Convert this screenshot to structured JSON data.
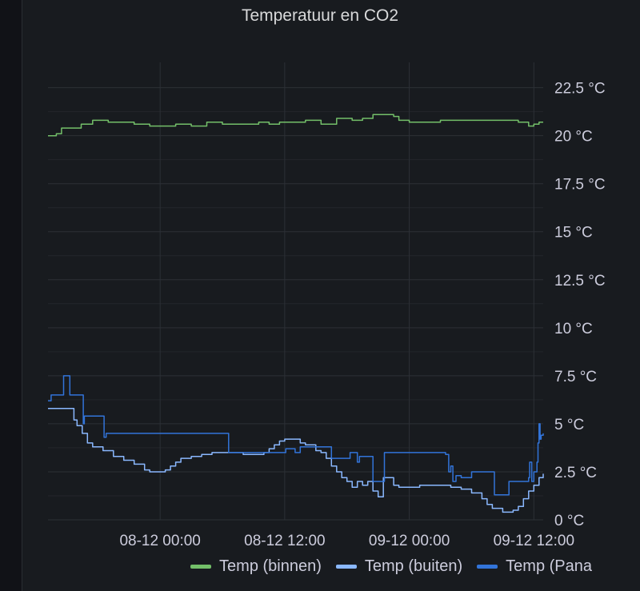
{
  "panel": {
    "title": "Temperatuur en CO2"
  },
  "chart_data": {
    "type": "line",
    "title": "Temperatuur en CO2",
    "xlabel": "",
    "ylabel": "",
    "x_tick_labels": [
      "08-12 00:00",
      "08-12 12:00",
      "09-12 00:00",
      "09-12 12:00"
    ],
    "x_tick_hours": [
      0,
      12,
      24,
      36
    ],
    "y_tick_labels": [
      "0 °C",
      "2.5 °C",
      "5 °C",
      "7.5 °C",
      "10 °C",
      "12.5 °C",
      "15 °C",
      "17.5 °C",
      "20 °C",
      "22.5 °C"
    ],
    "y_tick_values": [
      0,
      2.5,
      5,
      7.5,
      10,
      12.5,
      15,
      17.5,
      20,
      22.5
    ],
    "xlim_hours": [
      -10.8,
      36.9
    ],
    "ylim": [
      0,
      23.4
    ],
    "grid": true,
    "legend_placement": "bottom-right",
    "series": [
      {
        "name": "Temp (binnen)",
        "color": "#73bf69",
        "points": [
          [
            -10.8,
            20.0
          ],
          [
            -10,
            20.1
          ],
          [
            -9.5,
            20.4
          ],
          [
            -8.5,
            20.4
          ],
          [
            -8,
            20.4
          ],
          [
            -7.6,
            20.6
          ],
          [
            -6.5,
            20.8
          ],
          [
            -5,
            20.7
          ],
          [
            -4,
            20.7
          ],
          [
            -2.5,
            20.6
          ],
          [
            -1,
            20.5
          ],
          [
            0,
            20.5
          ],
          [
            1.5,
            20.6
          ],
          [
            3,
            20.5
          ],
          [
            4.5,
            20.7
          ],
          [
            6,
            20.6
          ],
          [
            8,
            20.6
          ],
          [
            9.5,
            20.7
          ],
          [
            10.5,
            20.6
          ],
          [
            11.5,
            20.7
          ],
          [
            12.5,
            20.7
          ],
          [
            14,
            20.8
          ],
          [
            15.5,
            20.6
          ],
          [
            17,
            20.9
          ],
          [
            18.5,
            20.8
          ],
          [
            19.5,
            20.9
          ],
          [
            20.5,
            21.1
          ],
          [
            21.5,
            21.1
          ],
          [
            22.5,
            21.0
          ],
          [
            23,
            20.8
          ],
          [
            24,
            20.7
          ],
          [
            25.5,
            20.7
          ],
          [
            27,
            20.8
          ],
          [
            28.5,
            20.8
          ],
          [
            30,
            20.8
          ],
          [
            31.5,
            20.8
          ],
          [
            33,
            20.8
          ],
          [
            34.5,
            20.7
          ],
          [
            35.5,
            20.5
          ],
          [
            36,
            20.6
          ],
          [
            36.5,
            20.7
          ],
          [
            36.9,
            20.7
          ]
        ]
      },
      {
        "name": "Temp (buiten)",
        "color": "#8ab8ff",
        "points": [
          [
            -10.8,
            5.8
          ],
          [
            -9,
            5.8
          ],
          [
            -8.3,
            5.2
          ],
          [
            -8,
            4.9
          ],
          [
            -7.5,
            4.5
          ],
          [
            -7,
            4.0
          ],
          [
            -6.5,
            3.8
          ],
          [
            -5.5,
            3.6
          ],
          [
            -4.5,
            3.3
          ],
          [
            -3.5,
            3.1
          ],
          [
            -2.5,
            2.9
          ],
          [
            -1.5,
            2.6
          ],
          [
            -1,
            2.5
          ],
          [
            0,
            2.5
          ],
          [
            0.5,
            2.6
          ],
          [
            1,
            2.8
          ],
          [
            1.5,
            3.0
          ],
          [
            2,
            3.2
          ],
          [
            3,
            3.3
          ],
          [
            4,
            3.4
          ],
          [
            5,
            3.5
          ],
          [
            6,
            3.5
          ],
          [
            7,
            3.5
          ],
          [
            8,
            3.4
          ],
          [
            9,
            3.4
          ],
          [
            10,
            3.5
          ],
          [
            10.5,
            3.7
          ],
          [
            11,
            3.9
          ],
          [
            11.5,
            4.1
          ],
          [
            12,
            4.2
          ],
          [
            13,
            4.2
          ],
          [
            13.5,
            4.0
          ],
          [
            14,
            3.9
          ],
          [
            15,
            3.6
          ],
          [
            15.5,
            3.5
          ],
          [
            16,
            3.2
          ],
          [
            16.5,
            2.8
          ],
          [
            17,
            2.5
          ],
          [
            17.5,
            2.2
          ],
          [
            18,
            2.0
          ],
          [
            18.5,
            1.7
          ],
          [
            19,
            2.0
          ],
          [
            19.5,
            1.8
          ],
          [
            20,
            2.0
          ],
          [
            20.5,
            1.5
          ],
          [
            21,
            1.2
          ],
          [
            21.5,
            2.2
          ],
          [
            22,
            2.2
          ],
          [
            22.5,
            1.8
          ],
          [
            23,
            1.7
          ],
          [
            24,
            1.7
          ],
          [
            25,
            1.8
          ],
          [
            26,
            1.8
          ],
          [
            27,
            1.8
          ],
          [
            28,
            1.7
          ],
          [
            29,
            1.6
          ],
          [
            30,
            1.4
          ],
          [
            31,
            1.1
          ],
          [
            31.5,
            0.8
          ],
          [
            32,
            0.6
          ],
          [
            33,
            0.4
          ],
          [
            34,
            0.5
          ],
          [
            34.5,
            0.7
          ],
          [
            35,
            1.1
          ],
          [
            35.5,
            1.5
          ],
          [
            36,
            1.8
          ],
          [
            36.5,
            2.2
          ],
          [
            36.9,
            2.4
          ]
        ]
      },
      {
        "name": "Temp (Pana",
        "color": "#3274d9",
        "points": [
          [
            -10.8,
            6.2
          ],
          [
            -10.5,
            6.5
          ],
          [
            -9.5,
            6.5
          ],
          [
            -9.3,
            7.5
          ],
          [
            -8.8,
            7.5
          ],
          [
            -8.7,
            6.5
          ],
          [
            -7.5,
            6.5
          ],
          [
            -7.4,
            5.0
          ],
          [
            -7.3,
            5.4
          ],
          [
            -5.5,
            5.4
          ],
          [
            -5.4,
            4.3
          ],
          [
            -5.2,
            4.5
          ],
          [
            -0.5,
            4.5
          ],
          [
            6.5,
            4.5
          ],
          [
            6.6,
            3.5
          ],
          [
            9,
            3.5
          ],
          [
            12,
            3.5
          ],
          [
            12.1,
            3.7
          ],
          [
            13,
            3.5
          ],
          [
            13.5,
            3.8
          ],
          [
            16,
            3.8
          ],
          [
            16.5,
            3.2
          ],
          [
            18,
            3.2
          ],
          [
            18.3,
            3.5
          ],
          [
            19,
            3.0
          ],
          [
            19.2,
            3.3
          ],
          [
            20,
            3.3
          ],
          [
            20.5,
            2.0
          ],
          [
            21.5,
            2.0
          ],
          [
            21.6,
            3.5
          ],
          [
            22.5,
            3.5
          ],
          [
            24,
            3.5
          ],
          [
            25,
            3.5
          ],
          [
            26,
            3.5
          ],
          [
            27,
            3.5
          ],
          [
            27.5,
            3.4
          ],
          [
            27.8,
            2.5
          ],
          [
            28,
            2.8
          ],
          [
            28.2,
            2.0
          ],
          [
            28.5,
            2.3
          ],
          [
            29,
            2.2
          ],
          [
            30,
            2.5
          ],
          [
            31,
            2.5
          ],
          [
            32,
            2.5
          ],
          [
            32.2,
            1.3
          ],
          [
            33,
            1.3
          ],
          [
            33.5,
            1.3
          ],
          [
            33.6,
            2.0
          ],
          [
            35,
            2.0
          ],
          [
            35.5,
            2.2
          ],
          [
            35.6,
            3.0
          ],
          [
            35.8,
            2.0
          ],
          [
            36,
            2.5
          ],
          [
            36.3,
            3.0
          ],
          [
            36.4,
            4.0
          ],
          [
            36.5,
            5.0
          ],
          [
            36.6,
            4.2
          ],
          [
            36.7,
            4.4
          ],
          [
            36.9,
            4.5
          ]
        ]
      }
    ]
  }
}
